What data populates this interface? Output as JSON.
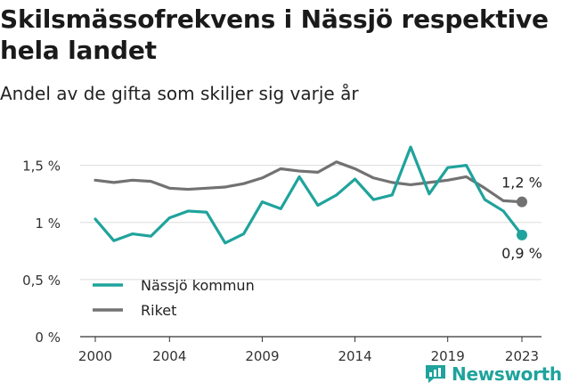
{
  "title": "Skilsmässofrekvens i Nässjö respektive hela landet",
  "subtitle": "Andel av de gifta som skiljer sig varje år",
  "brand": "Newsworthy",
  "chart_data": {
    "type": "line",
    "x": [
      2000,
      2001,
      2002,
      2003,
      2004,
      2005,
      2006,
      2007,
      2008,
      2009,
      2010,
      2011,
      2012,
      2013,
      2014,
      2015,
      2016,
      2017,
      2018,
      2019,
      2020,
      2021,
      2022,
      2023
    ],
    "x_ticks": [
      "2000",
      "2004",
      "2009",
      "2014",
      "2019",
      "2023"
    ],
    "y_ticks": [
      "0 %",
      "0,5 %",
      "1 %",
      "1,5 %"
    ],
    "ylim": [
      0,
      1.7
    ],
    "grid": "horizontal",
    "legend_position": "bottom-left",
    "series": [
      {
        "name": "Nässjö kommun",
        "color": "#1fa39c",
        "values": [
          1.03,
          0.84,
          0.9,
          0.88,
          1.04,
          1.1,
          1.09,
          0.82,
          0.9,
          1.18,
          1.12,
          1.4,
          1.15,
          1.24,
          1.38,
          1.2,
          1.24,
          1.66,
          1.25,
          1.48,
          1.5,
          1.2,
          1.1,
          0.89
        ],
        "end_label": "0,9 %"
      },
      {
        "name": "Riket",
        "color": "#727272",
        "values": [
          1.37,
          1.35,
          1.37,
          1.36,
          1.3,
          1.29,
          1.3,
          1.31,
          1.34,
          1.39,
          1.47,
          1.45,
          1.44,
          1.53,
          1.47,
          1.39,
          1.35,
          1.33,
          1.35,
          1.37,
          1.4,
          1.3,
          1.19,
          1.18
        ],
        "end_label": "1,2 %"
      }
    ]
  }
}
